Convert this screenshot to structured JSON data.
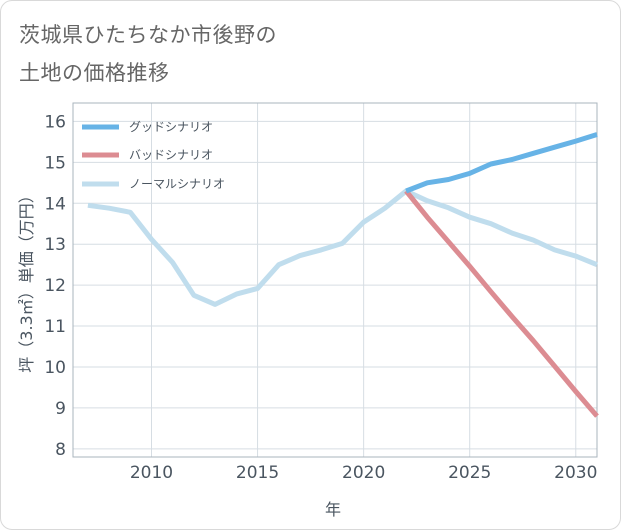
{
  "title": {
    "line1": "茨城県ひたちなか市後野の",
    "line2": "土地の価格推移"
  },
  "chart_data": {
    "type": "line",
    "xlabel": "年",
    "ylabel": "坪（3.3㎡）単価（万円）",
    "xlim": [
      2006.3,
      2031
    ],
    "ylim": [
      7.8,
      16.45
    ],
    "xticks": [
      2010,
      2015,
      2020,
      2025,
      2030
    ],
    "yticks": [
      8,
      9,
      10,
      11,
      12,
      13,
      14,
      15,
      16
    ],
    "grid": true,
    "legend_position": "top-left",
    "series": [
      {
        "name": "グッドシナリオ",
        "color": "#67b3e6",
        "width": 5,
        "points": [
          [
            2022,
            14.3
          ],
          [
            2023,
            14.5
          ],
          [
            2024,
            14.58
          ],
          [
            2025,
            14.73
          ],
          [
            2026,
            14.96
          ],
          [
            2027,
            15.07
          ],
          [
            2028,
            15.22
          ],
          [
            2029,
            15.37
          ],
          [
            2030,
            15.52
          ],
          [
            2031,
            15.68
          ]
        ]
      },
      {
        "name": "バッドシナリオ",
        "color": "#dc8c92",
        "width": 5,
        "points": [
          [
            2022,
            14.3
          ],
          [
            2023,
            13.66
          ],
          [
            2024,
            13.06
          ],
          [
            2025,
            12.46
          ],
          [
            2026,
            11.84
          ],
          [
            2027,
            11.23
          ],
          [
            2028,
            10.64
          ],
          [
            2029,
            10.02
          ],
          [
            2030,
            9.4
          ],
          [
            2031,
            8.8
          ]
        ]
      },
      {
        "name": "ノーマルシナリオ",
        "color": "#c0dded",
        "width": 5,
        "points": [
          [
            2007,
            13.95
          ],
          [
            2008,
            13.88
          ],
          [
            2009,
            13.78
          ],
          [
            2010,
            13.12
          ],
          [
            2011,
            12.55
          ],
          [
            2012,
            11.75
          ],
          [
            2013,
            11.53
          ],
          [
            2014,
            11.78
          ],
          [
            2015,
            11.92
          ],
          [
            2016,
            12.5
          ],
          [
            2017,
            12.72
          ],
          [
            2018,
            12.86
          ],
          [
            2019,
            13.02
          ],
          [
            2020,
            13.54
          ],
          [
            2021,
            13.88
          ],
          [
            2022,
            14.3
          ],
          [
            2023,
            14.06
          ],
          [
            2024,
            13.89
          ],
          [
            2025,
            13.66
          ],
          [
            2026,
            13.5
          ],
          [
            2027,
            13.27
          ],
          [
            2028,
            13.1
          ],
          [
            2029,
            12.86
          ],
          [
            2030,
            12.71
          ],
          [
            2031,
            12.5
          ]
        ]
      }
    ]
  }
}
